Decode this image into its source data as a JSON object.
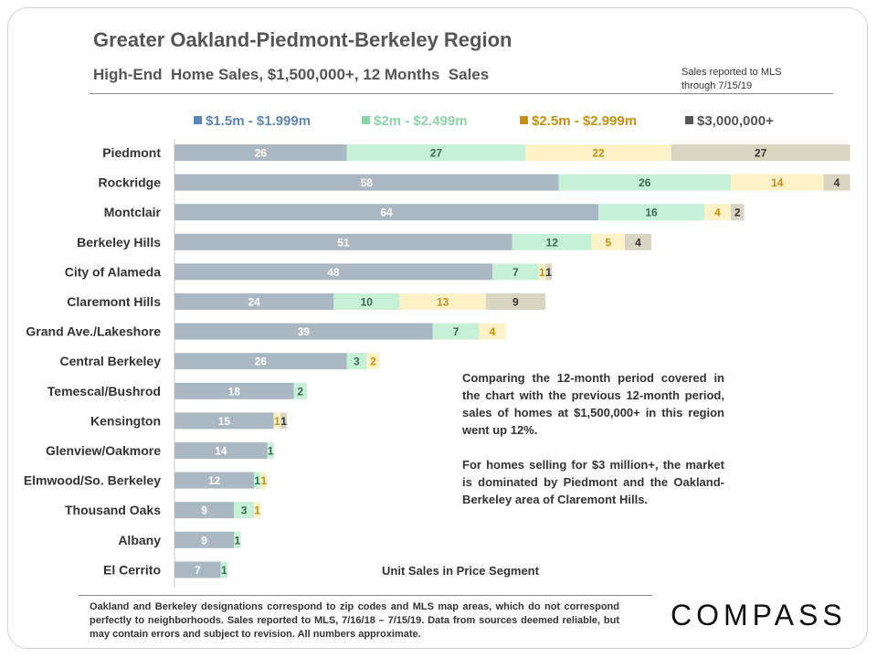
{
  "header": {
    "title": "Greater Oakland-Piedmont-Berkeley Region",
    "subtitle": "High-End  Home Sales, $1,500,000+, 12 Months  Sales",
    "note_line1": "Sales reported to MLS",
    "note_line2": "through 7/15/19"
  },
  "colors": {
    "seg1": "#a9b8c3",
    "seg2": "#c6f1d6",
    "seg3": "#fdf1c8",
    "seg4": "#d8d5c3",
    "label1": "#ffffff",
    "label2": "#3a6b4e",
    "label3": "#c4900e",
    "label4": "#333333",
    "legend1": "#5b86b5",
    "legend2": "#8cd3a6",
    "legend3": "#c4900e",
    "legend4": "#555555"
  },
  "chart_data": {
    "type": "bar",
    "orientation": "horizontal",
    "stacked": true,
    "categories": [
      "Piedmont",
      "Rockridge",
      "Montclair",
      "Berkeley Hills",
      "City of Alameda",
      "Claremont Hills",
      "Grand Ave./Lakeshore",
      "Central Berkeley",
      "Temescal/Bushrod",
      "Kensington",
      "Glenview/Oakmore",
      "Elmwood/So. Berkeley",
      "Thousand Oaks",
      "Albany",
      "El Cerrito"
    ],
    "series": [
      {
        "name": "$1.5m - $1.999m",
        "values": [
          26,
          58,
          64,
          51,
          48,
          24,
          39,
          26,
          18,
          15,
          14,
          12,
          9,
          9,
          7
        ]
      },
      {
        "name": "$2m - $2.499m",
        "values": [
          27,
          26,
          16,
          12,
          7,
          10,
          7,
          3,
          2,
          0,
          1,
          1,
          3,
          1,
          1
        ]
      },
      {
        "name": "$2.5m - $2.999m",
        "values": [
          22,
          14,
          4,
          5,
          1,
          13,
          4,
          2,
          0,
          1,
          0,
          1,
          1,
          0,
          0
        ]
      },
      {
        "name": "$3,000,000+",
        "values": [
          27,
          4,
          2,
          4,
          1,
          9,
          0,
          0,
          0,
          1,
          0,
          0,
          0,
          0,
          0
        ]
      }
    ],
    "xlabel": "Unit Sales in Price Segment",
    "xlim": [
      0,
      102
    ],
    "legend_position": "top",
    "grid": false
  },
  "annotation": {
    "p1": "Comparing the 12-month period covered in the chart with the previous 12-month period, sales of homes at $1,500,000+ in this region went up 12%.",
    "p2": "For homes selling for $3 million+, the market is dominated by Piedmont and the Oakland-Berkeley area of Claremont Hills."
  },
  "footer": {
    "text": "Oakland and Berkeley designations correspond to zip codes and MLS map areas, which do not correspond perfectly to neighborhoods. Sales reported to MLS, 7/16/18 – 7/15/19. Data from sources deemed reliable, but may contain errors and subject to revision. All numbers approximate.",
    "logo": "COMPASS"
  }
}
